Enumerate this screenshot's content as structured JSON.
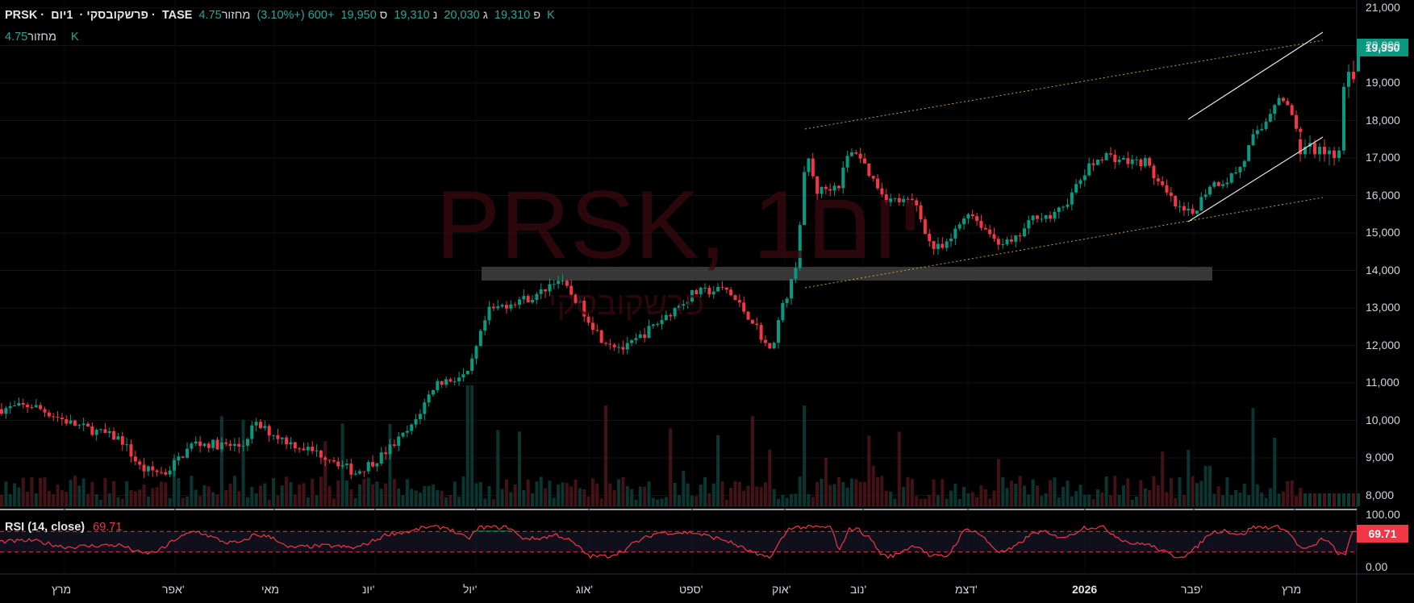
{
  "header": {
    "symbol": "PRSK",
    "interval": "1יום",
    "name": "פרשקובסקי",
    "exchange": "TASE",
    "open_label": "פ",
    "open": "19,310",
    "high_label": "ג",
    "high": "20,030",
    "low_label": "נ",
    "low": "19,310",
    "close_label": "ס",
    "close": "19,950",
    "change": "+600 (+3.10%)",
    "volume_label": "מחזור",
    "volume": "4.75 K"
  },
  "volume_row": {
    "label": "מחזור",
    "value": "4.75 K"
  },
  "watermark": {
    "title": "PRSK, 1יום",
    "subtitle": "פרשקובסקי"
  },
  "price_axis": {
    "ticks": [
      "21,000",
      "20,000",
      "19,000",
      "18,000",
      "17,000",
      "16,000",
      "15,000",
      "14,000",
      "13,000",
      "12,000",
      "11,000",
      "10,000",
      "9,000",
      "8,000"
    ],
    "last_price": "19,950"
  },
  "rsi": {
    "label": "RSI (14, close)",
    "value": "69.71",
    "ticks": [
      "100.00",
      "0.00"
    ]
  },
  "time_axis": {
    "labels": [
      "מרץ",
      "אפר'",
      "מאי",
      "יונ'",
      "יול'",
      "אוג'",
      "ספט'",
      "אוק'",
      "נוב'",
      "דצמ'",
      "2026",
      "פבר'",
      "מרץ"
    ]
  },
  "colors": {
    "up": "#089981",
    "down": "#f23645",
    "accent": "#26a69a",
    "rsi": "#f23645"
  },
  "chart_data": {
    "type": "candlestick",
    "y_range": [
      7800,
      21300
    ],
    "key_points": [
      {
        "date": "מרץ",
        "price": 10400
      },
      {
        "date": "אפר'",
        "price": 8600
      },
      {
        "date": "יונ'",
        "price": 8600
      },
      {
        "date": "יול'",
        "price": 13000
      },
      {
        "date": "אוג'",
        "price": 12000
      },
      {
        "date": "אוק'",
        "price": 11800
      },
      {
        "date": "אוק'",
        "price": 17300
      },
      {
        "date": "דצמ'",
        "price": 14600
      },
      {
        "date": "2026",
        "price": 17000
      },
      {
        "date": "פבר'",
        "price": 15300
      },
      {
        "date": "מרץ",
        "price": 19000
      },
      {
        "date": "מרץ",
        "price": 19950
      }
    ],
    "resistance_zone": [
      13800,
      14100
    ],
    "rsi_last": 69.71,
    "rsi_levels": [
      70,
      30
    ]
  }
}
